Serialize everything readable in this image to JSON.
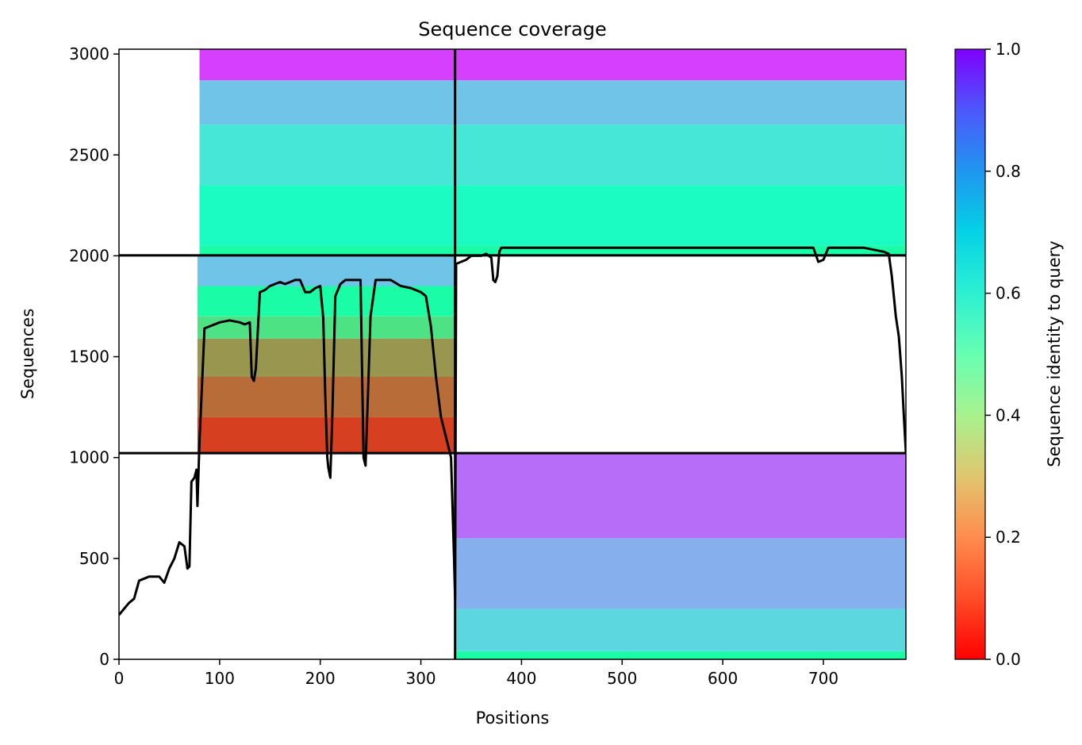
{
  "chart_data": {
    "type": "heatmap",
    "title": "Sequence coverage",
    "xlabel": "Positions",
    "ylabel": "Sequences",
    "xlim": [
      0,
      782
    ],
    "ylim": [
      0,
      3024
    ],
    "xticks": [
      0,
      100,
      200,
      300,
      400,
      500,
      600,
      700
    ],
    "yticks": [
      0,
      500,
      1000,
      1500,
      2000,
      2500,
      3000
    ],
    "colorbar": {
      "label": "Sequence identity to query",
      "range": [
        0,
        1
      ],
      "ticks": [
        0.0,
        0.2,
        0.4,
        0.6,
        0.8,
        1.0
      ],
      "tick_labels": [
        "0.0",
        "0.2",
        "0.4",
        "0.6",
        "0.8",
        "1.0"
      ],
      "colormap": "rainbow_r"
    },
    "grid": false,
    "boundaries": {
      "x": [
        334
      ],
      "y": [
        1022,
        2002
      ]
    },
    "blocks": [
      {
        "name": "",
        "x": [
          334,
          782
        ],
        "y": [
          0,
          1022
        ],
        "coverage_start": 334,
        "bands": [
          {
            "y": [
              0,
              40
            ],
            "identity": 0.45
          },
          {
            "y": [
              40,
              250
            ],
            "identity": 0.68
          },
          {
            "y": [
              250,
              600
            ],
            "identity": 0.76
          },
          {
            "y": [
              600,
              1022
            ],
            "identity": 0.86
          }
        ]
      },
      {
        "name": "",
        "x": [
          0,
          334
        ],
        "y": [
          1022,
          2002
        ],
        "coverage_start": 78,
        "bands": [
          {
            "y": [
              1022,
              1200
            ],
            "identity": 0.08
          },
          {
            "y": [
              1200,
              1400
            ],
            "identity": 0.14
          },
          {
            "y": [
              1400,
              1590
            ],
            "identity": 0.2
          },
          {
            "y": [
              1590,
              1700
            ],
            "identity": 0.35
          },
          {
            "y": [
              1700,
              1850
            ],
            "identity": 0.45
          },
          {
            "y": [
              1850,
              2002
            ],
            "identity": 0.72
          }
        ]
      },
      {
        "name": "",
        "x": [
          0,
          334
        ],
        "y": [
          2002,
          3024
        ],
        "coverage_start": 80,
        "bands": [
          {
            "y": [
              2002,
              2050
            ],
            "identity": 0.45
          },
          {
            "y": [
              2050,
              2350
            ],
            "identity": 0.55
          },
          {
            "y": [
              2350,
              2650
            ],
            "identity": 0.64
          },
          {
            "y": [
              2650,
              2870
            ],
            "identity": 0.72
          },
          {
            "y": [
              2870,
              3024
            ],
            "identity": 0.92
          }
        ]
      },
      {
        "name": "",
        "x": [
          334,
          782
        ],
        "y": [
          2002,
          3024
        ],
        "coverage_start": 334,
        "bands": [
          {
            "y": [
              2002,
              2050
            ],
            "identity": 0.45
          },
          {
            "y": [
              2050,
              2350
            ],
            "identity": 0.55
          },
          {
            "y": [
              2350,
              2650
            ],
            "identity": 0.64
          },
          {
            "y": [
              2650,
              2870
            ],
            "identity": 0.72
          },
          {
            "y": [
              2870,
              3024
            ],
            "identity": 0.92
          }
        ]
      }
    ],
    "coverage_line": {
      "x": [
        0,
        5,
        10,
        15,
        20,
        25,
        30,
        35,
        40,
        45,
        50,
        55,
        60,
        65,
        68,
        70,
        72,
        75,
        77,
        78,
        80,
        85,
        90,
        100,
        110,
        120,
        125,
        130,
        132,
        134,
        136,
        140,
        145,
        150,
        155,
        160,
        165,
        170,
        175,
        180,
        185,
        190,
        195,
        200,
        203,
        205,
        207,
        208,
        210,
        212,
        215,
        220,
        225,
        230,
        235,
        240,
        243,
        245,
        248,
        250,
        255,
        260,
        270,
        280,
        290,
        300,
        305,
        310,
        315,
        320,
        325,
        330,
        333,
        334,
        335,
        340,
        345,
        350,
        360,
        365,
        370,
        372,
        374,
        376,
        378,
        380,
        400,
        450,
        500,
        550,
        600,
        650,
        690,
        695,
        700,
        705,
        720,
        740,
        760,
        765,
        768,
        770,
        772,
        775,
        778,
        780,
        782
      ],
      "y": [
        220,
        250,
        280,
        300,
        390,
        400,
        410,
        410,
        410,
        380,
        450,
        500,
        580,
        560,
        450,
        460,
        880,
        900,
        940,
        760,
        1080,
        1640,
        1650,
        1670,
        1680,
        1670,
        1660,
        1670,
        1400,
        1380,
        1440,
        1820,
        1830,
        1850,
        1860,
        1870,
        1860,
        1870,
        1880,
        1880,
        1820,
        1820,
        1840,
        1850,
        1690,
        1300,
        1000,
        950,
        900,
        1200,
        1800,
        1860,
        1880,
        1880,
        1880,
        1880,
        1000,
        960,
        1400,
        1700,
        1880,
        1880,
        1880,
        1850,
        1840,
        1820,
        1800,
        1650,
        1400,
        1200,
        1100,
        1000,
        500,
        300,
        1960,
        1970,
        1980,
        2000,
        2000,
        2010,
        1990,
        1880,
        1870,
        1900,
        2020,
        2040,
        2040,
        2040,
        2040,
        2040,
        2040,
        2040,
        2040,
        1970,
        1980,
        2040,
        2040,
        2040,
        2020,
        2010,
        1900,
        1800,
        1700,
        1600,
        1400,
        1200,
        1022
      ]
    }
  }
}
